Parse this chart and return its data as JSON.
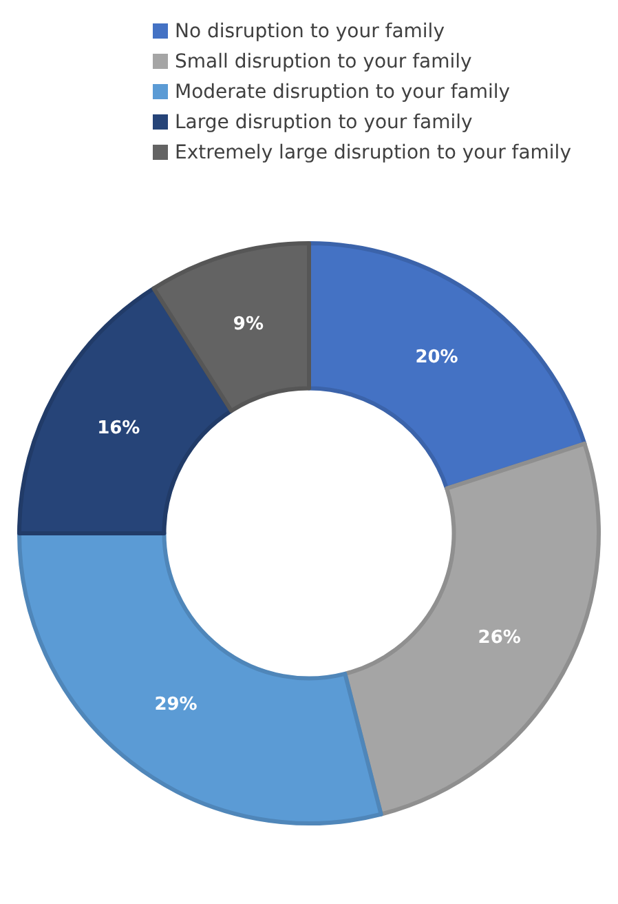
{
  "chart_data": {
    "type": "donut",
    "categories": [
      "No disruption to your family",
      "Small disruption to your family",
      "Moderate disruption to your family",
      "Large disruption to your family",
      "Extremely large disruption to your family"
    ],
    "values": [
      20,
      26,
      29,
      16,
      9
    ],
    "value_labels": [
      "20%",
      "26%",
      "29%",
      "16%",
      "9%"
    ],
    "colors": [
      "#4472c4",
      "#a5a5a5",
      "#5b9bd5",
      "#264478",
      "#636363"
    ],
    "legend": "top"
  }
}
